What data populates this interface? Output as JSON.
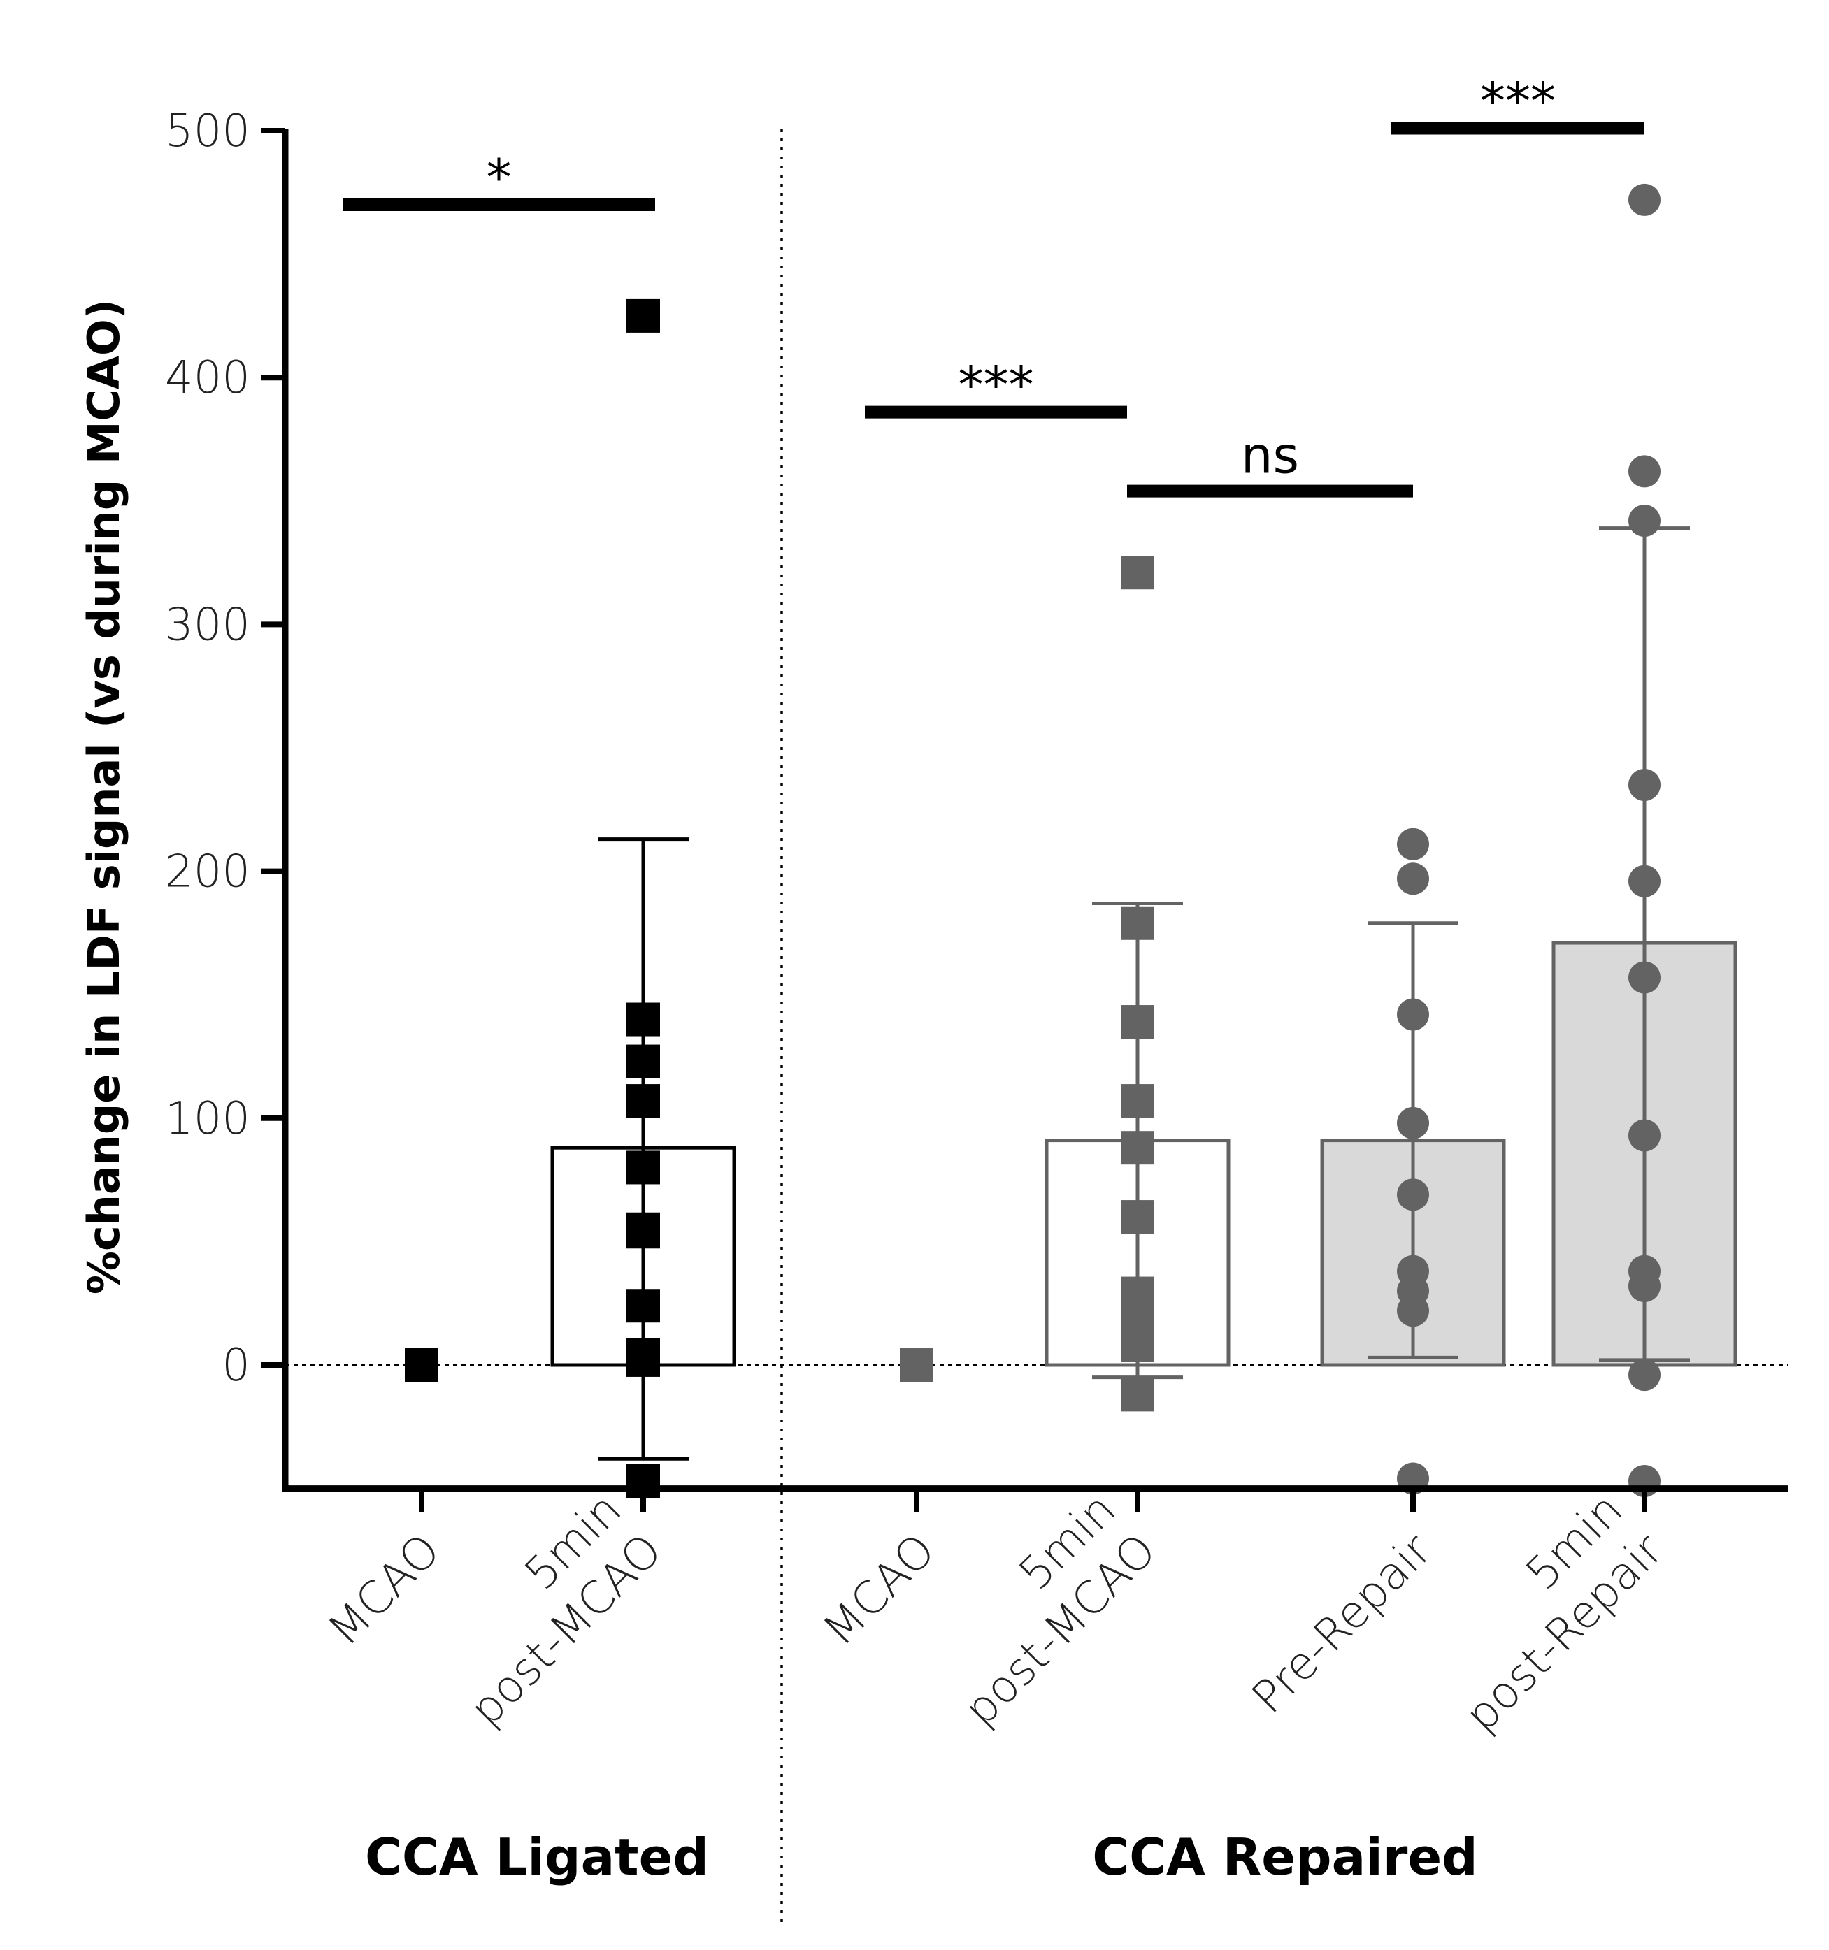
{
  "chart_data": {
    "type": "bar",
    "ylabel": "%change in LDF signal (vs during MCAO)",
    "ylim": [
      -50,
      500
    ],
    "yticks": [
      0,
      100,
      200,
      300,
      400,
      500
    ],
    "yticklabels": [
      "0",
      "100",
      "200",
      "300",
      "400",
      "500"
    ],
    "reference_line": 0,
    "colors": {
      "ligated": "#000000",
      "repaired": "#636363",
      "filled_bar": "#d9d9d9"
    },
    "groups": [
      {
        "name": "CCA Ligated",
        "categories": [
          {
            "label_lines": [
              "MCAO"
            ],
            "x": 1,
            "color": "#000000",
            "marker": "square",
            "bar": null,
            "points": [
              0
            ]
          },
          {
            "label_lines": [
              "5min",
              "post-MCAO"
            ],
            "x": 2,
            "color": "#000000",
            "marker": "square",
            "bar": {
              "mean": 88,
              "sd_low": -38,
              "sd_high": 213,
              "fill": "none"
            },
            "points": [
              425,
              140,
              123,
              107,
              80,
              55,
              54,
              24,
              4,
              2,
              -47
            ]
          }
        ]
      },
      {
        "name": "CCA Repaired",
        "categories": [
          {
            "label_lines": [
              "MCAO"
            ],
            "x": 3,
            "color": "#636363",
            "marker": "square",
            "bar": null,
            "points": [
              0
            ]
          },
          {
            "label_lines": [
              "5min",
              "post-MCAO"
            ],
            "x": 4,
            "color": "#636363",
            "marker": "square",
            "bar": {
              "mean": 91,
              "sd_low": -5,
              "sd_high": 187,
              "fill": "none"
            },
            "points": [
              321,
              179,
              139,
              107,
              88,
              60,
              29,
              22,
              15,
              8,
              -12
            ]
          },
          {
            "label_lines": [
              "Pre-Repair"
            ],
            "x": 5,
            "color": "#636363",
            "marker": "circle",
            "bar": {
              "mean": 91,
              "sd_low": 3,
              "sd_high": 179,
              "fill": "#d9d9d9"
            },
            "points": [
              211,
              197,
              142,
              98,
              69,
              38,
              30,
              22,
              -46
            ]
          },
          {
            "label_lines": [
              "5min",
              "post-Repair"
            ],
            "x": 6,
            "color": "#636363",
            "marker": "circle",
            "bar": {
              "mean": 171,
              "sd_low": 2,
              "sd_high": 339,
              "fill": "#d9d9d9"
            },
            "points": [
              472,
              362,
              342,
              235,
              196,
              157,
              93,
              38,
              32,
              -4,
              -47
            ]
          }
        ]
      }
    ],
    "significance": [
      {
        "label": "*",
        "from_x": 1,
        "to_x": 2,
        "y": 470
      },
      {
        "label": "***",
        "from_x": 3,
        "to_x": 4,
        "y": 386
      },
      {
        "label": "ns",
        "from_x": 4,
        "to_x": 5,
        "y": 354
      },
      {
        "label": "***",
        "from_x": 5,
        "to_x": 6,
        "y": 501
      }
    ]
  }
}
